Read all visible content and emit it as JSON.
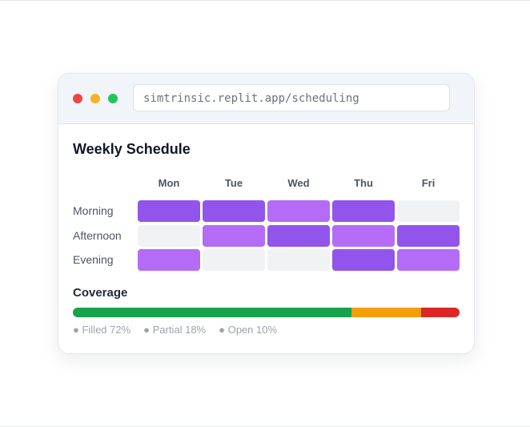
{
  "browser": {
    "url": "simtrinsic.replit.app/scheduling"
  },
  "schedule": {
    "title": "Weekly Schedule",
    "days": [
      "Mon",
      "Tue",
      "Wed",
      "Thu",
      "Fri"
    ],
    "rows": [
      {
        "label": "Morning",
        "cells": [
          "#9155eb",
          "#9155eb",
          "#b46cf7",
          "#9155eb",
          "#f1f2f4"
        ]
      },
      {
        "label": "Afternoon",
        "cells": [
          "#f1f2f4",
          "#b46cf7",
          "#9155eb",
          "#b46cf7",
          "#9155eb"
        ]
      },
      {
        "label": "Evening",
        "cells": [
          "#b46cf7",
          "#f1f2f4",
          "#f1f2f4",
          "#9155eb",
          "#b46cf7"
        ]
      }
    ]
  },
  "coverage": {
    "title": "Coverage",
    "segments": [
      {
        "label": "Filled 72%",
        "value": 72,
        "color": "#16a34a"
      },
      {
        "label": "Partial 18%",
        "value": 18,
        "color": "#f59e0b"
      },
      {
        "label": "Open 10%",
        "value": 10,
        "color": "#dc2626"
      }
    ]
  }
}
